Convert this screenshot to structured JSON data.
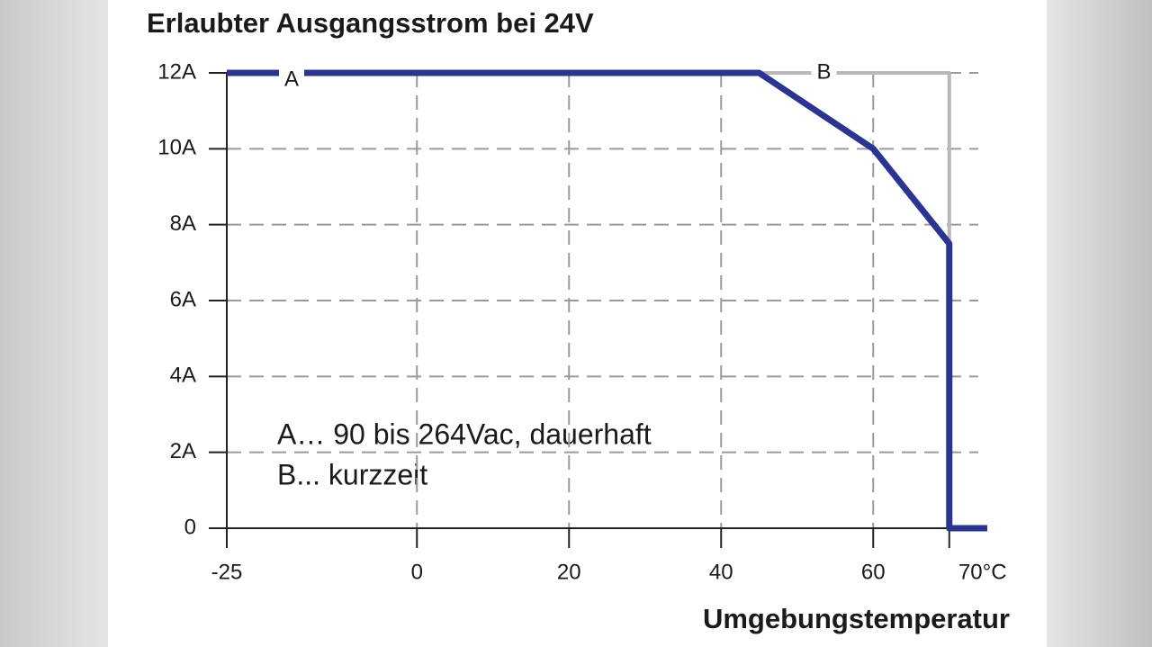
{
  "chart_data": {
    "type": "line",
    "title": "Erlaubter Ausgangsstrom bei 24V",
    "x_label": "Umgebungstemperatur",
    "annotations": [
      "A… 90 bis 264Vac, dauerhaft",
      "B... kurzzeit"
    ],
    "series": [
      {
        "name": "B",
        "color": "#b8b8b8",
        "x": [
          45,
          70,
          70
        ],
        "values": [
          12,
          12,
          0
        ]
      },
      {
        "name": "A",
        "color": "#2b3591",
        "x": [
          -25,
          45,
          60,
          70,
          70,
          75
        ],
        "values": [
          12,
          12,
          10,
          7.5,
          0,
          0
        ]
      }
    ],
    "xlim": [
      -25,
      75
    ],
    "ylim": [
      0,
      12
    ],
    "xticks": [
      -25,
      0,
      20,
      40,
      60,
      {
        "value": 70,
        "label": "70°C"
      }
    ],
    "yticks": [
      0,
      {
        "value": 2,
        "label": "2A"
      },
      {
        "value": 4,
        "label": "4A"
      },
      {
        "value": 6,
        "label": "6A"
      },
      {
        "value": 8,
        "label": "8A"
      },
      {
        "value": 10,
        "label": "10A"
      },
      {
        "value": 12,
        "label": "12A"
      }
    ],
    "grid": true
  }
}
